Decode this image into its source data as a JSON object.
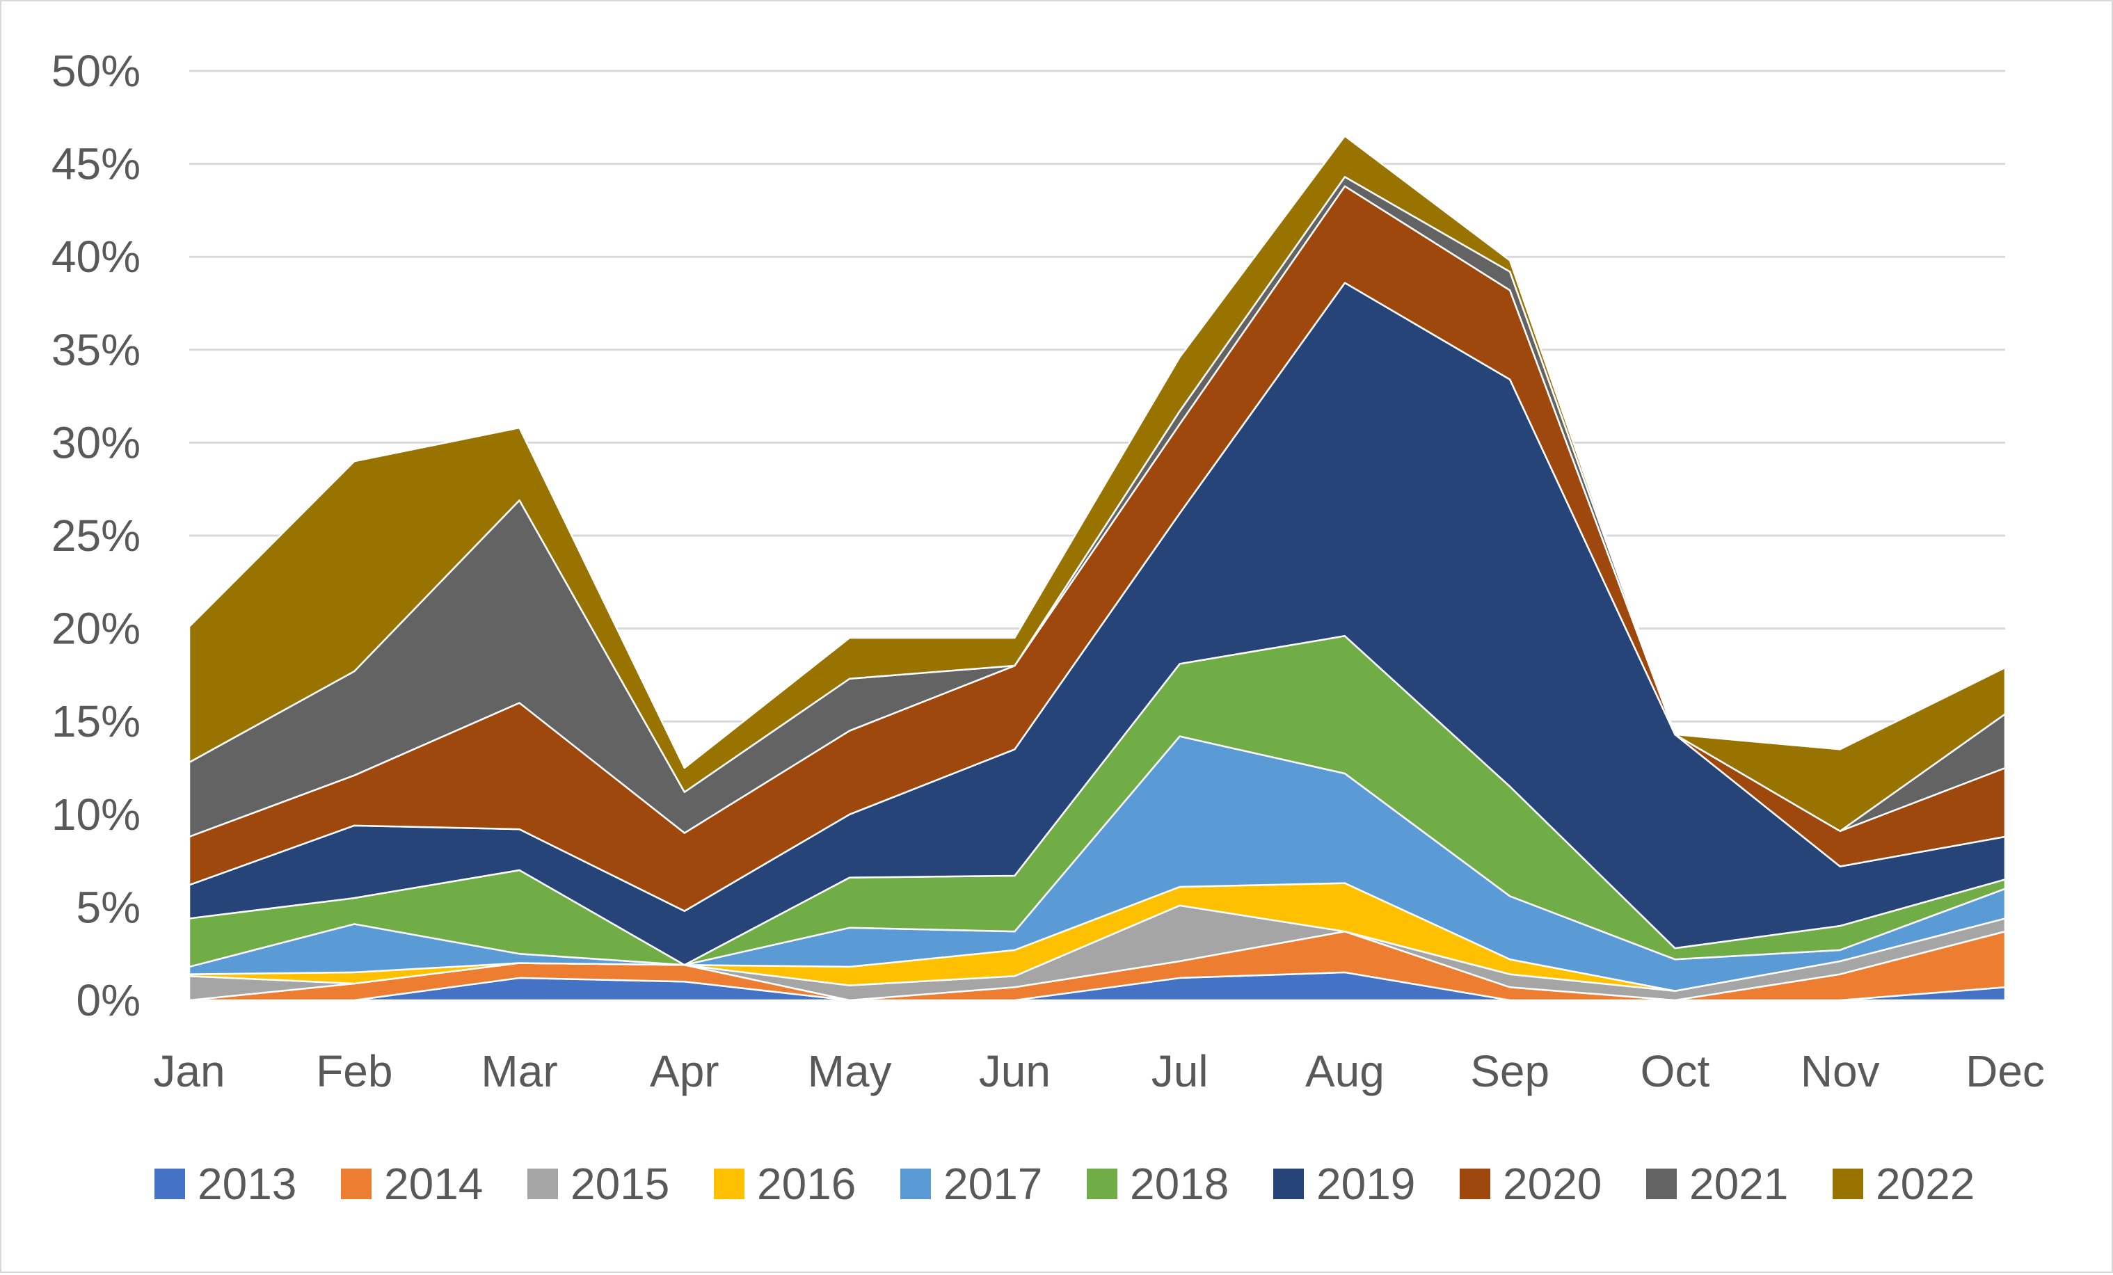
{
  "chart_data": {
    "type": "area",
    "stacked": true,
    "title": "",
    "xlabel": "",
    "ylabel": "",
    "categories": [
      "Jan",
      "Feb",
      "Mar",
      "Apr",
      "May",
      "Jun",
      "Jul",
      "Aug",
      "Sep",
      "Oct",
      "Nov",
      "Dec"
    ],
    "y_ticks": [
      "0%",
      "5%",
      "10%",
      "15%",
      "20%",
      "25%",
      "30%",
      "35%",
      "40%",
      "45%",
      "50%"
    ],
    "ylim": [
      0,
      50
    ],
    "grid": true,
    "legend_position": "bottom",
    "series": [
      {
        "name": "2013",
        "color": "#4472C4",
        "values": [
          0.0,
          0.0,
          1.2,
          1.0,
          0.0,
          0.0,
          1.2,
          1.5,
          0.0,
          0.0,
          0.0,
          0.7
        ]
      },
      {
        "name": "2014",
        "color": "#ED7D31",
        "values": [
          0.0,
          0.9,
          0.8,
          0.9,
          0.0,
          0.7,
          0.9,
          2.2,
          0.7,
          0.0,
          1.4,
          3.0
        ]
      },
      {
        "name": "2015",
        "color": "#A5A5A5",
        "values": [
          1.3,
          0.0,
          0.0,
          0.0,
          0.8,
          0.6,
          3.0,
          0.0,
          0.7,
          0.5,
          0.7,
          0.7
        ]
      },
      {
        "name": "2016",
        "color": "#FFC000",
        "values": [
          0.1,
          0.6,
          0.0,
          0.0,
          1.0,
          1.4,
          1.0,
          2.6,
          0.8,
          0.0,
          0.0,
          0.0
        ]
      },
      {
        "name": "2017",
        "color": "#5B9BD5",
        "values": [
          0.4,
          2.6,
          0.5,
          0.0,
          2.1,
          1.0,
          8.1,
          5.9,
          3.4,
          1.7,
          0.6,
          1.6
        ]
      },
      {
        "name": "2018",
        "color": "#70AD47",
        "values": [
          2.6,
          1.4,
          4.5,
          0.0,
          2.7,
          3.0,
          3.9,
          7.4,
          5.9,
          0.6,
          1.3,
          0.5
        ]
      },
      {
        "name": "2019",
        "color": "#264478",
        "values": [
          1.8,
          3.9,
          2.2,
          2.9,
          3.4,
          6.8,
          8.1,
          19.0,
          21.9,
          11.5,
          3.2,
          2.3
        ]
      },
      {
        "name": "2020",
        "color": "#9E480E",
        "values": [
          2.6,
          2.7,
          6.8,
          4.2,
          4.5,
          4.5,
          4.8,
          5.2,
          4.8,
          0.0,
          1.9,
          3.7
        ]
      },
      {
        "name": "2021",
        "color": "#636363",
        "values": [
          4.0,
          5.6,
          10.9,
          2.2,
          2.8,
          0.0,
          0.7,
          0.5,
          1.0,
          0.0,
          0.0,
          2.9
        ]
      },
      {
        "name": "2022",
        "color": "#997300",
        "values": [
          7.3,
          11.3,
          3.9,
          1.3,
          2.2,
          1.5,
          2.9,
          2.2,
          0.6,
          0.0,
          4.4,
          2.5
        ]
      }
    ]
  }
}
